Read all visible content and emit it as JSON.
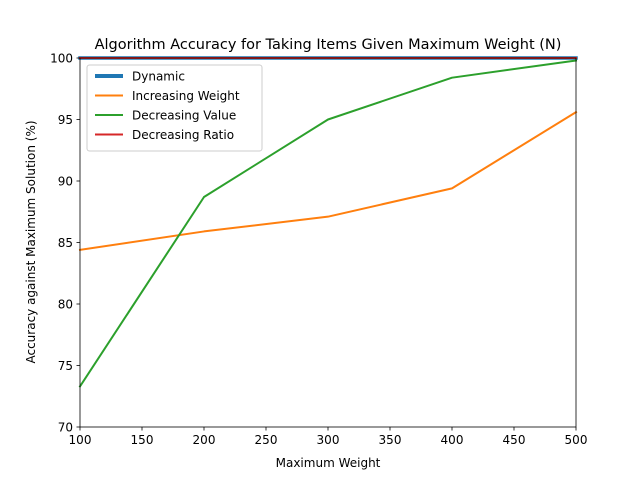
{
  "chart_data": {
    "type": "line",
    "title": "Algorithm Accuracy for Taking Items Given Maximum Weight (N)",
    "xlabel": "Maximum Weight",
    "ylabel": "Accuracy against Maximum Solution (%)",
    "xlim": [
      100,
      500
    ],
    "ylim": [
      70,
      100
    ],
    "xticks": [
      100,
      150,
      200,
      250,
      300,
      350,
      400,
      450,
      500
    ],
    "yticks": [
      70,
      75,
      80,
      85,
      90,
      95,
      100
    ],
    "grid": false,
    "legend_position": "top-left",
    "x": [
      100,
      200,
      300,
      400,
      500
    ],
    "series": [
      {
        "name": "Dynamic",
        "color": "#1f77b4",
        "values": [
          100,
          100,
          100,
          100,
          100
        ]
      },
      {
        "name": "Increasing Weight",
        "color": "#ff7f0e",
        "values": [
          84.4,
          85.9,
          87.1,
          89.4,
          95.6
        ]
      },
      {
        "name": "Decreasing Value",
        "color": "#2ca02c",
        "values": [
          73.3,
          88.7,
          95.0,
          98.4,
          99.8
        ]
      },
      {
        "name": "Decreasing Ratio",
        "color": "#d62728",
        "values": [
          100,
          100,
          100,
          100,
          100
        ]
      }
    ]
  }
}
